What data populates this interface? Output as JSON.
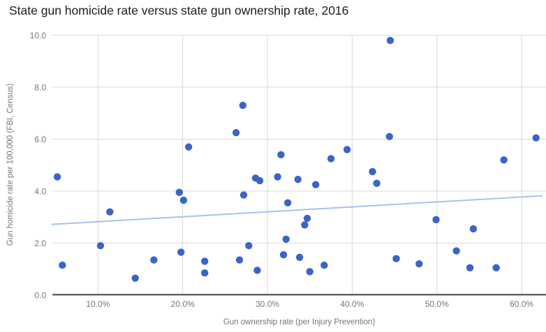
{
  "title": "State gun homicide rate versus state gun ownership rate, 2016",
  "chart_data": {
    "type": "scatter",
    "title": "State gun homicide rate versus state gun ownership rate, 2016",
    "xlabel": "Gun ownership rate (per Injury Prevention)",
    "ylabel": "Gun homicide rate per 100,000 (FBI, Census)",
    "x_tick_labels": [
      "10.0%",
      "20.0%",
      "30.0%",
      "40.0%",
      "50.0%",
      "60.0%"
    ],
    "x_tick_values": [
      10,
      20,
      30,
      40,
      50,
      60
    ],
    "y_tick_labels": [
      "0.0",
      "2.0",
      "4.0",
      "6.0",
      "8.0",
      "10.0"
    ],
    "y_tick_values": [
      0,
      2,
      4,
      6,
      8,
      10
    ],
    "xlim": [
      4.6,
      62.9
    ],
    "ylim": [
      0,
      10
    ],
    "grid": true,
    "legend": false,
    "x_unit": "percent",
    "points": [
      [
        5.2,
        4.55
      ],
      [
        5.8,
        1.15
      ],
      [
        10.3,
        1.9
      ],
      [
        11.4,
        3.2
      ],
      [
        14.4,
        0.65
      ],
      [
        16.6,
        1.35
      ],
      [
        19.6,
        3.95
      ],
      [
        19.8,
        1.65
      ],
      [
        20.1,
        3.65
      ],
      [
        20.7,
        5.7
      ],
      [
        22.6,
        1.3
      ],
      [
        22.6,
        0.85
      ],
      [
        26.3,
        6.25
      ],
      [
        26.7,
        1.35
      ],
      [
        27.1,
        7.3
      ],
      [
        27.2,
        3.85
      ],
      [
        27.8,
        1.9
      ],
      [
        28.6,
        4.5
      ],
      [
        28.8,
        0.95
      ],
      [
        29.1,
        4.4
      ],
      [
        31.2,
        4.55
      ],
      [
        31.6,
        5.4
      ],
      [
        31.9,
        1.55
      ],
      [
        32.2,
        2.15
      ],
      [
        32.4,
        3.55
      ],
      [
        33.6,
        4.45
      ],
      [
        33.8,
        1.45
      ],
      [
        34.4,
        2.7
      ],
      [
        34.7,
        2.95
      ],
      [
        35.0,
        0.9
      ],
      [
        35.7,
        4.25
      ],
      [
        36.7,
        1.15
      ],
      [
        37.5,
        5.25
      ],
      [
        39.4,
        5.6
      ],
      [
        42.4,
        4.75
      ],
      [
        42.9,
        4.3
      ],
      [
        44.4,
        6.1
      ],
      [
        44.5,
        9.8
      ],
      [
        45.2,
        1.4
      ],
      [
        47.9,
        1.2
      ],
      [
        49.9,
        2.9
      ],
      [
        52.3,
        1.7
      ],
      [
        53.9,
        1.05
      ],
      [
        54.3,
        2.55
      ],
      [
        57.0,
        1.05
      ],
      [
        57.9,
        5.2
      ],
      [
        61.7,
        6.05
      ]
    ],
    "trendline": {
      "x1": 4.6,
      "y1": 2.72,
      "x2": 62.4,
      "y2": 3.82
    },
    "colors": {
      "point": "#3b64c8",
      "trend": "#a7c1ef",
      "grid": "#d9d9d9",
      "axis": "#424242",
      "tick_label": "#757575",
      "title": "#1c1c1c"
    }
  }
}
